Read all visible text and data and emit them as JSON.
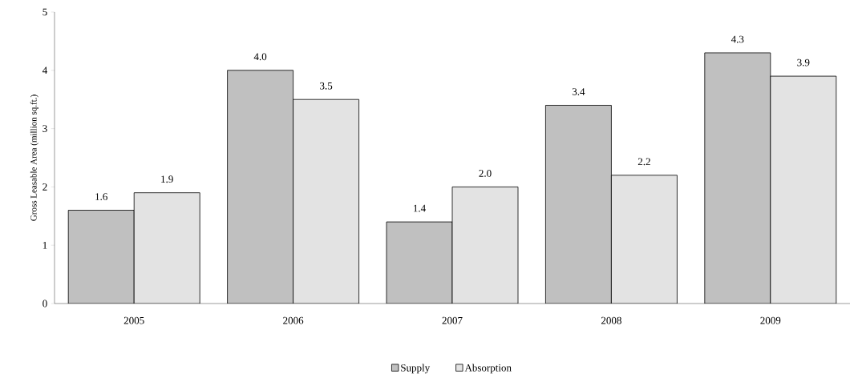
{
  "chart_data": {
    "type": "bar",
    "ylabel": "Gross Leasable Area (million sq.ft.)",
    "categories": [
      "2005",
      "2006",
      "2007",
      "2008",
      "2009"
    ],
    "ylim": [
      0,
      5
    ],
    "yticks": [
      0,
      1,
      2,
      3,
      4,
      5
    ],
    "legend": "bottom",
    "series": [
      {
        "name": "Supply",
        "color": "#c0c0c0",
        "values": [
          1.6,
          4.0,
          1.4,
          3.4,
          4.3
        ],
        "value_labels": [
          "1.6",
          "4.0",
          "1.4",
          "3.4",
          "4.3"
        ]
      },
      {
        "name": "Absorption",
        "color": "#e3e3e3",
        "values": [
          1.9,
          3.5,
          2.0,
          2.2,
          3.9
        ],
        "value_labels": [
          "1.9",
          "3.5",
          "2.0",
          "2.2",
          "3.9"
        ]
      }
    ]
  }
}
